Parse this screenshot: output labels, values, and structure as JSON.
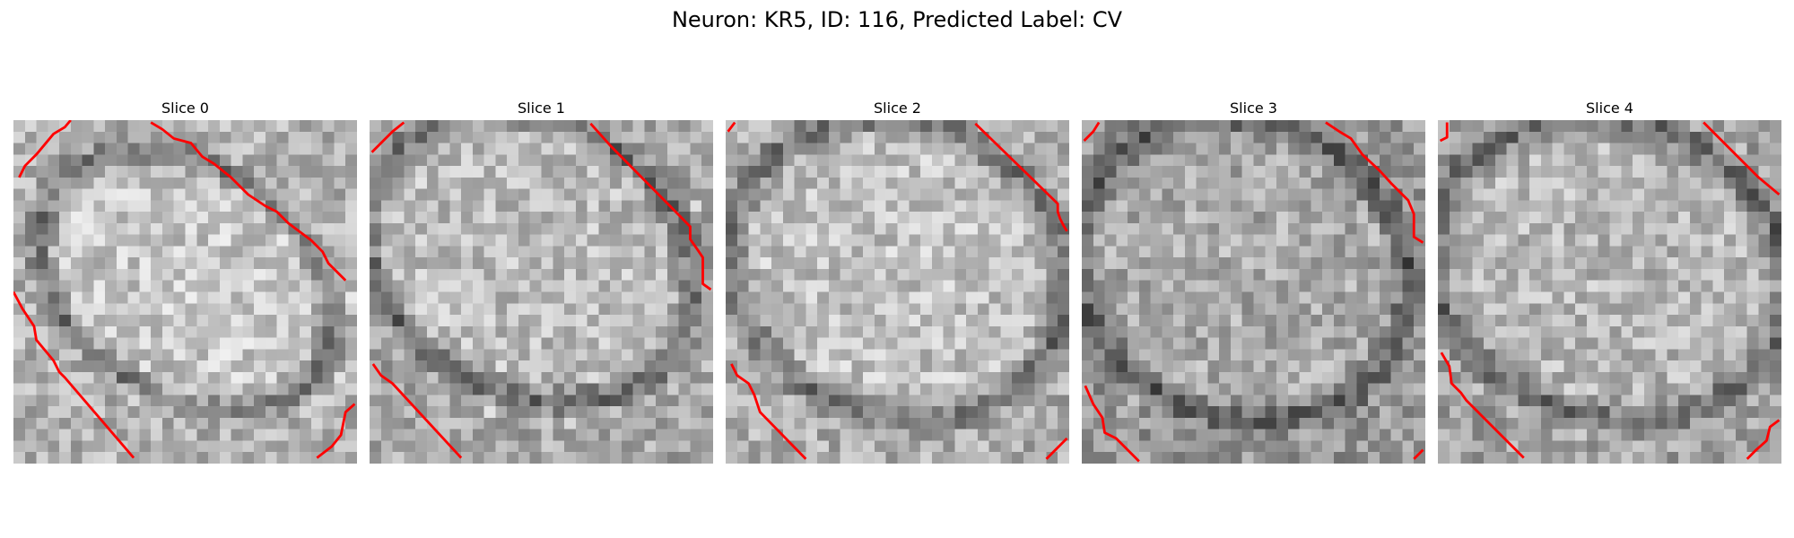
{
  "figure": {
    "title": "Neuron: KR5, ID: 116, Predicted Label: CV",
    "contour_color": "#ff0000",
    "panels": [
      {
        "title": "Slice 0",
        "mean_brightness": 0.66
      },
      {
        "title": "Slice 1",
        "mean_brightness": 0.62
      },
      {
        "title": "Slice 2",
        "mean_brightness": 0.64
      },
      {
        "title": "Slice 3",
        "mean_brightness": 0.55
      },
      {
        "title": "Slice 4",
        "mean_brightness": 0.6
      }
    ]
  }
}
